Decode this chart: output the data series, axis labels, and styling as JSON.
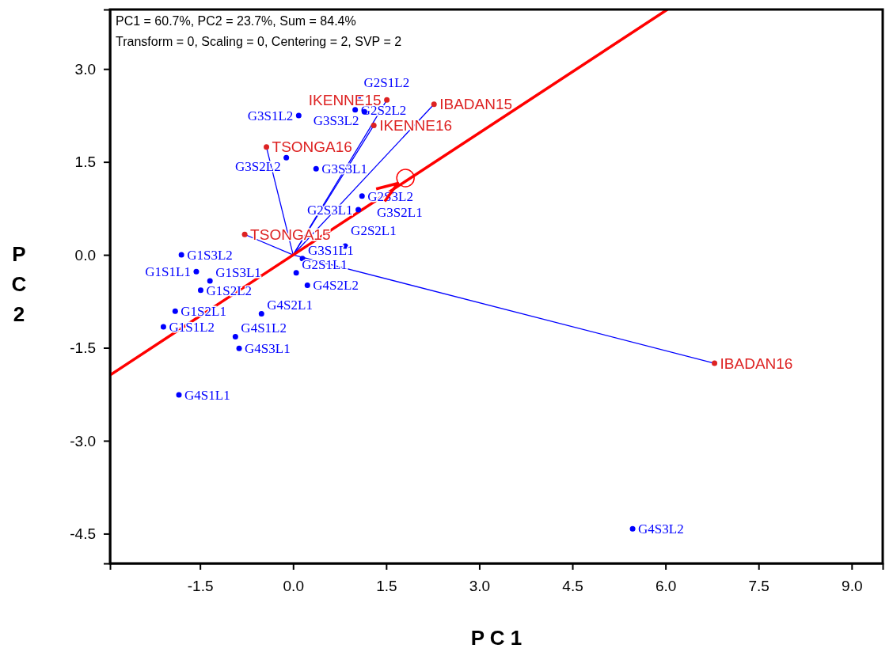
{
  "chart_data": {
    "type": "scatter",
    "xlabel": "P C 1",
    "ylabel": "PC2",
    "annotations": [
      "PC1 = 60.7%, PC2 = 23.7%, Sum = 84.4%",
      "Transform = 0, Scaling = 0, Centering = 2, SVP = 2"
    ],
    "xlim": [
      -2.95,
      9.5
    ],
    "ylim": [
      -4.98,
      3.96
    ],
    "xticks": [
      {
        "value": -1.5,
        "label": "-1.5"
      },
      {
        "value": 0,
        "label": "0.0"
      },
      {
        "value": 1.5,
        "label": "1.5"
      },
      {
        "value": 3,
        "label": "3.0"
      },
      {
        "value": 4.5,
        "label": "4.5"
      },
      {
        "value": 6,
        "label": "6.0"
      },
      {
        "value": 7.5,
        "label": "7.5"
      },
      {
        "value": 9,
        "label": "9.0"
      }
    ],
    "yticks": [
      {
        "value": -4.5,
        "label": "-4.5"
      },
      {
        "value": -3,
        "label": "-3.0"
      },
      {
        "value": -1.5,
        "label": "-1.5"
      },
      {
        "value": 0,
        "label": "0.0"
      },
      {
        "value": 1.5,
        "label": "1.5"
      },
      {
        "value": 3,
        "label": "3.0"
      }
    ],
    "grid": false,
    "series": [
      {
        "type": "line",
        "color": "#0000ff",
        "x": [
          0,
          1.51
        ],
        "values": [
          0,
          2.5
        ]
      },
      {
        "type": "line",
        "color": "#0000ff",
        "x": [
          0,
          2.27
        ],
        "values": [
          0,
          2.43
        ]
      },
      {
        "type": "line",
        "color": "#0000ff",
        "x": [
          0,
          1.3
        ],
        "values": [
          0,
          2.09
        ]
      },
      {
        "type": "line",
        "color": "#0000ff",
        "x": [
          0,
          -0.43
        ],
        "values": [
          0,
          1.74
        ]
      },
      {
        "type": "line",
        "color": "#0000ff",
        "x": [
          -0.78,
          0,
          6.79
        ],
        "values": [
          0.33,
          0,
          -1.75
        ]
      },
      {
        "type": "line",
        "color": "#ff0000",
        "x": [
          -2.95,
          6.03
        ],
        "values": [
          -1.94,
          3.96
        ]
      },
      {
        "type": "scatter",
        "marker": "circle",
        "color": "#ff0000",
        "x": [
          1.81
        ],
        "values": [
          1.24
        ]
      },
      {
        "marker": "circle",
        "color": "#0000ff",
        "x": [
          1.05,
          0.09,
          1.0,
          1.15,
          -0.11,
          0.37,
          1.11,
          1.05,
          1.26,
          0.84,
          0.15,
          -1.8,
          0.05,
          -1.56,
          -1.34,
          0.23,
          -1.49,
          -0.51,
          -1.9,
          -2.09,
          -0.93,
          -0.87,
          -1.84,
          5.47
        ],
        "values": [
          2.53,
          2.25,
          2.34,
          2.31,
          1.57,
          1.39,
          0.95,
          0.73,
          0.43,
          0.14,
          -0.06,
          0.0,
          -0.29,
          -0.27,
          -0.42,
          -0.49,
          -0.57,
          -0.95,
          -0.91,
          -1.16,
          -1.32,
          -1.51,
          -2.26,
          -4.42
        ],
        "value_labels": [
          "G2S1L2",
          "G3S1L2",
          "G2S2L2",
          "G3S3L2",
          "G3S2L2",
          "G3S3L1",
          "G2S3L2",
          "G2S3L1",
          "G3S2L1",
          "G2S2L1",
          "G3S1L1",
          "G1S3L2",
          "G2S1L1",
          "G1S1L1",
          "G1S3L1",
          "G4S2L2",
          "G1S2L2",
          "G4S2L1",
          "G1S2L1",
          "G1S1L2",
          "G4S1L2",
          "G4S3L1",
          "G4S1L1",
          "G4S3L2"
        ]
      },
      {
        "marker": "circle",
        "color": "#dd2222",
        "x": [
          1.51,
          2.27,
          1.3,
          -0.43,
          -0.78,
          6.79
        ],
        "values": [
          2.5,
          2.43,
          2.09,
          1.74,
          0.33,
          -1.75
        ],
        "value_labels": [
          "IKENNE15",
          "IBADAN15",
          "IKENNE16",
          "TSONGA16",
          "TSONGA15",
          "IBADAN16"
        ]
      }
    ]
  }
}
